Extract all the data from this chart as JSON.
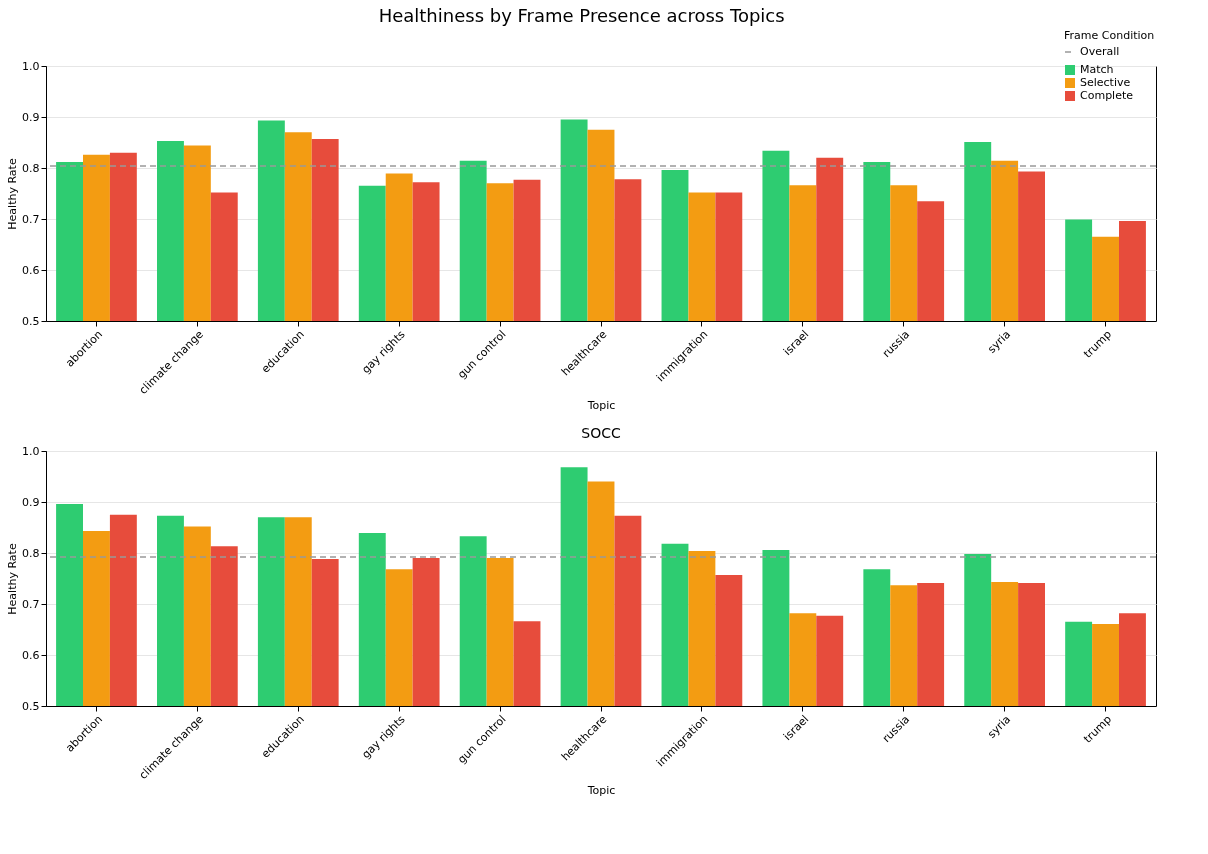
{
  "chart_data": [
    {
      "type": "bar",
      "title": "Healthiness by Frame Presence across Topics",
      "xlabel": "Topic",
      "ylabel": "Healthy Rate",
      "legend_title": "Frame Condition",
      "legend": "top right",
      "grid": "y",
      "categories": [
        "abortion",
        "climate change",
        "education",
        "gay rights",
        "gun control",
        "healthcare",
        "immigration",
        "israel",
        "russia",
        "syria",
        "trump"
      ],
      "series": [
        {
          "name": "Match",
          "color": "#2ecc71",
          "values": [
            0.812,
            0.853,
            0.893,
            0.765,
            0.814,
            0.895,
            0.796,
            0.834,
            0.812,
            0.851,
            0.699
          ]
        },
        {
          "name": "Selective",
          "color": "#f39c12",
          "values": [
            0.826,
            0.844,
            0.87,
            0.789,
            0.77,
            0.875,
            0.752,
            0.766,
            0.766,
            0.814,
            0.665
          ]
        },
        {
          "name": "Complete",
          "color": "#e74c3c",
          "values": [
            0.83,
            0.752,
            0.857,
            0.772,
            0.777,
            0.778,
            0.752,
            0.82,
            0.735,
            0.793,
            0.696
          ]
        }
      ],
      "ylim": [
        0.5,
        1.0
      ],
      "yticks": [
        0.5,
        0.6,
        0.7,
        0.8,
        0.9,
        {
          "value": 1.0,
          "label": "1.0"
        }
      ],
      "ref_lines": [
        {
          "axis": "y",
          "value": 0.804,
          "label": "Overall",
          "color": "#999999",
          "line_style": "dashed"
        }
      ]
    },
    {
      "type": "bar",
      "title": "SOCC",
      "xlabel": "Topic",
      "ylabel": "Healthy Rate",
      "grid": "y",
      "categories": [
        "abortion",
        "climate change",
        "education",
        "gay rights",
        "gun control",
        "healthcare",
        "immigration",
        "israel",
        "russia",
        "syria",
        "trump"
      ],
      "series": [
        {
          "name": "Match",
          "color": "#2ecc71",
          "values": [
            0.896,
            0.873,
            0.87,
            0.839,
            0.833,
            0.968,
            0.818,
            0.806,
            0.768,
            0.798,
            0.665
          ]
        },
        {
          "name": "Selective",
          "color": "#f39c12",
          "values": [
            0.843,
            0.852,
            0.87,
            0.768,
            0.79,
            0.94,
            0.804,
            0.682,
            0.737,
            0.743,
            0.661
          ]
        },
        {
          "name": "Complete",
          "color": "#e74c3c",
          "values": [
            0.875,
            0.813,
            0.788,
            0.79,
            0.666,
            0.873,
            0.757,
            0.677,
            0.741,
            0.741,
            0.682
          ]
        }
      ],
      "ylim": [
        0.5,
        1.0
      ],
      "yticks": [
        0.5,
        0.6,
        0.7,
        0.8,
        0.9,
        {
          "value": 1.0,
          "label": "1.0"
        }
      ],
      "ref_lines": [
        {
          "axis": "y",
          "value": 0.792,
          "color": "#999999",
          "line_style": "dashed"
        }
      ]
    }
  ]
}
